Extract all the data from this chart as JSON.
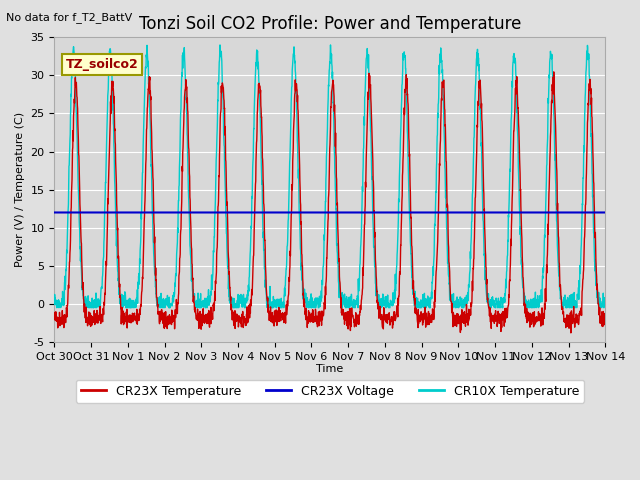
{
  "title": "Tonzi Soil CO2 Profile: Power and Temperature",
  "subtitle": "No data for f_T2_BattV",
  "ylabel": "Power (V) / Temperature (C)",
  "xlabel": "Time",
  "ylim": [
    -5,
    35
  ],
  "yticks": [
    -5,
    0,
    5,
    10,
    15,
    20,
    25,
    30,
    35
  ],
  "xtick_labels": [
    "Oct 30",
    "Oct 31",
    "Nov 1",
    "Nov 2",
    "Nov 3",
    "Nov 4",
    "Nov 5",
    "Nov 6",
    "Nov 7",
    "Nov 8",
    "Nov 9",
    "Nov 10",
    "Nov 11",
    "Nov 12",
    "Nov 13",
    "Nov 14"
  ],
  "voltage_level": 12.0,
  "background_color": "#e0e0e0",
  "plot_bg_color": "#d8d8d8",
  "cr23x_temp_color": "#cc0000",
  "cr10x_temp_color": "#00cccc",
  "voltage_color": "#0000cc",
  "annotation_box_color": "#ffffcc",
  "annotation_box_edge": "#999900",
  "title_fontsize": 12,
  "axis_fontsize": 8,
  "legend_fontsize": 9,
  "grid_color": "#ffffff"
}
